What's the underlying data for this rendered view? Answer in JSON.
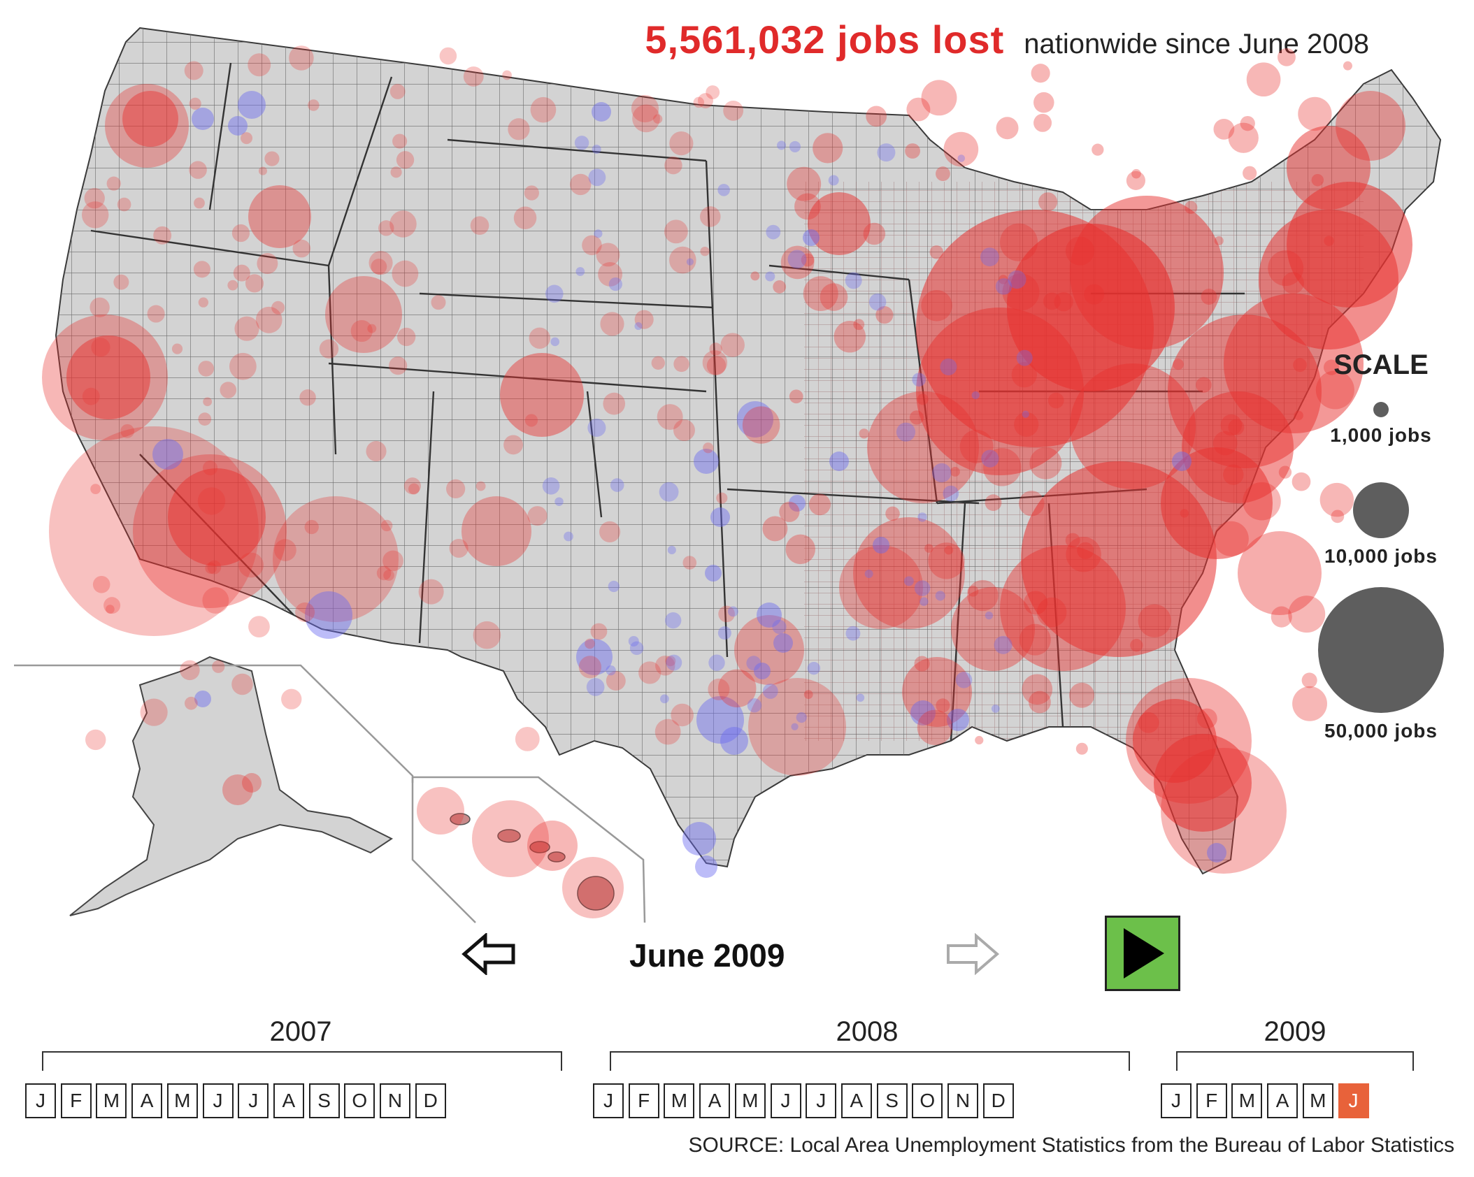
{
  "header": {
    "jobs_lost": "5,561,032 jobs lost",
    "subtitle": "nationwide since June 2008"
  },
  "colors": {
    "loss": "#e8312f",
    "gain": "#6a6af0",
    "land": "#d3d3d3",
    "border": "#4a4a4a",
    "scale_circle": "#5e5e5e",
    "play_button": "#6cc04a",
    "active_month": "#e8623a"
  },
  "scale": {
    "title": "SCALE",
    "items": [
      {
        "label": "1,000 jobs",
        "jobs": 1000
      },
      {
        "label": "10,000 jobs",
        "jobs": 10000
      },
      {
        "label": "50,000 jobs",
        "jobs": 50000
      }
    ]
  },
  "navigation": {
    "prev_icon": "left-arrow-icon",
    "next_icon": "right-arrow-icon",
    "play_icon": "play-icon",
    "current_period": "June 2009"
  },
  "timeline": {
    "years": [
      {
        "year": "2007",
        "months": [
          "J",
          "F",
          "M",
          "A",
          "M",
          "J",
          "J",
          "A",
          "S",
          "O",
          "N",
          "D"
        ]
      },
      {
        "year": "2008",
        "months": [
          "J",
          "F",
          "M",
          "A",
          "M",
          "J",
          "J",
          "A",
          "S",
          "O",
          "N",
          "D"
        ]
      },
      {
        "year": "2009",
        "months": [
          "J",
          "F",
          "M",
          "A",
          "M",
          "J"
        ]
      }
    ],
    "active_year": "2009",
    "active_month_index": 5
  },
  "source": "SOURCE: Local Area Unemployment Statistics from the Bureau of Labor Statistics"
}
